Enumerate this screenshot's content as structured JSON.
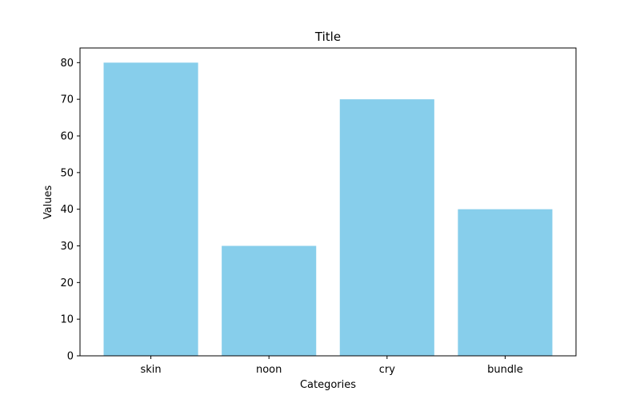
{
  "chart_data": {
    "type": "bar",
    "title": "Title",
    "xlabel": "Categories",
    "ylabel": "Values",
    "categories": [
      "skin",
      "noon",
      "cry",
      "bundle"
    ],
    "values": [
      80,
      30,
      70,
      40
    ],
    "ylim": [
      0,
      84
    ],
    "yticks": [
      0,
      10,
      20,
      30,
      40,
      50,
      60,
      70,
      80
    ],
    "grid": false,
    "legend": "none",
    "colors": {
      "bar": "#87CEEB",
      "axis": "#000000",
      "background": "#ffffff"
    }
  }
}
